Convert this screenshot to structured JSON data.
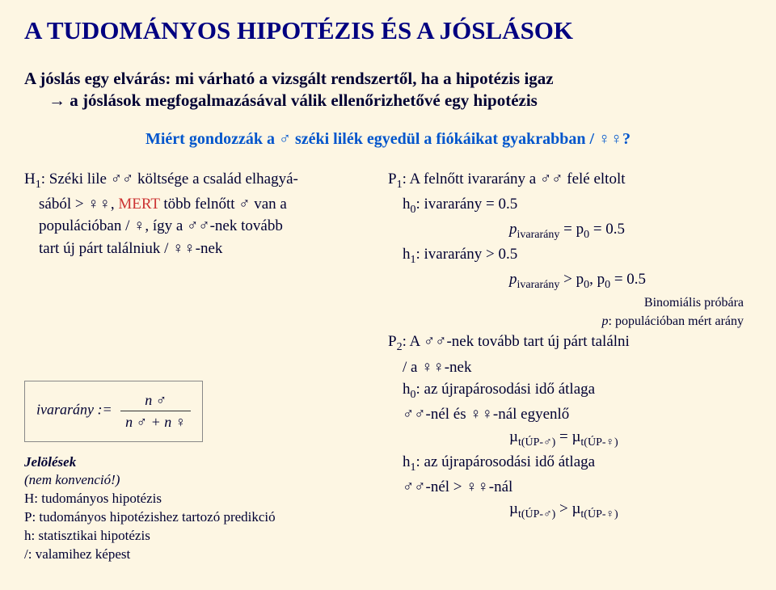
{
  "title": "A TUDOMÁNYOS HIPOTÉZIS ÉS A JÓSLÁSOK",
  "intro_line1": "A jóslás egy elvárás: mi várható a vizsgált rendszertől, ha a hipotézis igaz",
  "intro_line2": "→ a jóslások megfogalmazásával válik ellenőrizhetővé egy hipotézis",
  "question": "Miért gondozzák a ♂ széki lilék egyedül a fiókáikat gyakrabban / ♀♀?",
  "left": {
    "h1_a": "H",
    "h1_sub": "1",
    "h1_b": ": Széki lile ♂♂ költsége a család elhagyá-",
    "h1_c": "sából > ♀♀, ",
    "h1_mert": "MERT",
    "h1_d": " több felnőtt ♂ van a",
    "h1_e": "populációban  / ♀, így a ♂♂-nek tovább",
    "h1_f": "tart új párt találniuk / ♀♀-nek",
    "formula_label": "ivararány :=",
    "formula_num": "n ♂",
    "formula_den": "n ♂ + n ♀",
    "legend_title": "Jelölések",
    "legend_note": "(nem konvenció!)",
    "legend_H": "H: tudományos hipotézis",
    "legend_P": "P: tudományos hipotézishez tartozó predikció",
    "legend_h": "h: statisztikai hipotézis",
    "legend_slash": "/: valamihez képest"
  },
  "right": {
    "p1_a": "P",
    "p1_sub": "1",
    "p1_b": ": A felnőtt ivararány a ♂♂ felé eltolt",
    "h0_a": "h",
    "h0_sub": "0",
    "h0_b": ": ivararány = 0.5",
    "p_eq": "p",
    "p_eq_sub": "ivararány",
    "p_eq_b": " = p",
    "p_eq_sub2": "0",
    "p_eq_c": " = 0.5",
    "h1r_a": "h",
    "h1r_sub": "1",
    "h1r_b": ": ivararány > 0.5",
    "p_gt": "p",
    "p_gt_sub": "ivararány",
    "p_gt_b": " > p",
    "p_gt_sub2": "0",
    "p_gt_c": ", p",
    "p_gt_sub3": "0",
    "p_gt_d": " = 0.5",
    "binom1": "Binomiális próbára",
    "binom2_a": "p",
    "binom2_b": ": populációban mért arány",
    "p2_a": "P",
    "p2_sub": "2",
    "p2_b": ": A ♂♂-nek tovább tart új párt találni",
    "p2_c": "/ a ♀♀-nek",
    "h0b_a": "h",
    "h0b_sub": "0",
    "h0b_b": ": az újrapárosodási idő átlaga",
    "h0b_c": "♂♂-nél és ♀♀-nál egyenlő",
    "mu_eq_a": "µ",
    "mu_eq_sub1": "t(ÚP-♂)",
    "mu_eq_b": " = µ",
    "mu_eq_sub2": "t(ÚP-♀)",
    "h1b_a": "h",
    "h1b_sub": "1",
    "h1b_b": ": az újrapárosodási idő átlaga",
    "h1b_c": "♂♂-nél > ♀♀-nál",
    "mu_gt_a": "µ",
    "mu_gt_sub1": "t(ÚP-♂)",
    "mu_gt_b": " > µ",
    "mu_gt_sub2": "t(ÚP-♀)"
  }
}
